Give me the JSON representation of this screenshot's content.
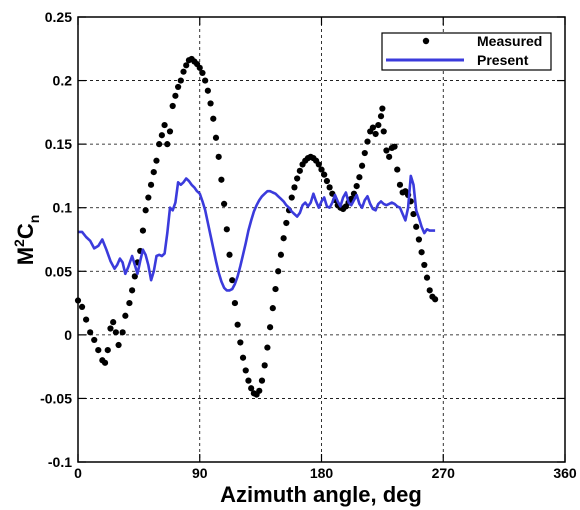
{
  "chart_data": {
    "type": "line",
    "xlabel": "Azimuth angle, deg",
    "ylabel_base": "M",
    "ylabel_sup": "2",
    "ylabel_mid": "C",
    "ylabel_sub": "n",
    "xlim": [
      0,
      360
    ],
    "ylim": [
      -0.1,
      0.25
    ],
    "xticks": [
      0,
      90,
      180,
      270,
      360
    ],
    "yticks": [
      -0.1,
      -0.05,
      0,
      0.05,
      0.1,
      0.15,
      0.2,
      0.25
    ],
    "xtick_labels": [
      "0",
      "90",
      "180",
      "270",
      "360"
    ],
    "ytick_labels": [
      "-0.1",
      "-0.05",
      "0",
      "0.05",
      "0.1",
      "0.15",
      "0.2",
      "0.25"
    ],
    "grid": true,
    "legend_position": "top-right",
    "series": [
      {
        "name": "Measured",
        "style": "markers",
        "color": "#000000",
        "points": [
          [
            0,
            0.027
          ],
          [
            3,
            0.022
          ],
          [
            6,
            0.012
          ],
          [
            9,
            0.002
          ],
          [
            12,
            -0.004
          ],
          [
            15,
            -0.012
          ],
          [
            18,
            -0.02
          ],
          [
            20,
            -0.022
          ],
          [
            22,
            -0.012
          ],
          [
            24,
            0.005
          ],
          [
            26,
            0.01
          ],
          [
            28,
            0.002
          ],
          [
            30,
            -0.008
          ],
          [
            33,
            0.002
          ],
          [
            35,
            0.015
          ],
          [
            38,
            0.025
          ],
          [
            40,
            0.035
          ],
          [
            42,
            0.046
          ],
          [
            44,
            0.057
          ],
          [
            46,
            0.066
          ],
          [
            48,
            0.082
          ],
          [
            50,
            0.098
          ],
          [
            52,
            0.108
          ],
          [
            54,
            0.118
          ],
          [
            56,
            0.128
          ],
          [
            58,
            0.137
          ],
          [
            60,
            0.15
          ],
          [
            62,
            0.157
          ],
          [
            64,
            0.165
          ],
          [
            66,
            0.15
          ],
          [
            68,
            0.16
          ],
          [
            70,
            0.18
          ],
          [
            72,
            0.188
          ],
          [
            74,
            0.195
          ],
          [
            76,
            0.2
          ],
          [
            78,
            0.207
          ],
          [
            80,
            0.212
          ],
          [
            82,
            0.216
          ],
          [
            84,
            0.217
          ],
          [
            86,
            0.215
          ],
          [
            88,
            0.213
          ],
          [
            90,
            0.21
          ],
          [
            92,
            0.206
          ],
          [
            94,
            0.2
          ],
          [
            96,
            0.192
          ],
          [
            98,
            0.182
          ],
          [
            100,
            0.17
          ],
          [
            102,
            0.155
          ],
          [
            104,
            0.14
          ],
          [
            106,
            0.122
          ],
          [
            108,
            0.103
          ],
          [
            110,
            0.083
          ],
          [
            112,
            0.063
          ],
          [
            114,
            0.043
          ],
          [
            116,
            0.025
          ],
          [
            118,
            0.008
          ],
          [
            120,
            -0.006
          ],
          [
            122,
            -0.018
          ],
          [
            124,
            -0.028
          ],
          [
            126,
            -0.036
          ],
          [
            128,
            -0.042
          ],
          [
            130,
            -0.046
          ],
          [
            132,
            -0.047
          ],
          [
            134,
            -0.044
          ],
          [
            136,
            -0.036
          ],
          [
            138,
            -0.024
          ],
          [
            140,
            -0.01
          ],
          [
            142,
            0.006
          ],
          [
            144,
            0.021
          ],
          [
            146,
            0.036
          ],
          [
            148,
            0.05
          ],
          [
            150,
            0.063
          ],
          [
            152,
            0.076
          ],
          [
            154,
            0.088
          ],
          [
            156,
            0.098
          ],
          [
            158,
            0.108
          ],
          [
            160,
            0.116
          ],
          [
            162,
            0.123
          ],
          [
            164,
            0.129
          ],
          [
            166,
            0.134
          ],
          [
            168,
            0.137
          ],
          [
            170,
            0.139
          ],
          [
            172,
            0.14
          ],
          [
            174,
            0.139
          ],
          [
            176,
            0.137
          ],
          [
            178,
            0.134
          ],
          [
            180,
            0.13
          ],
          [
            182,
            0.126
          ],
          [
            184,
            0.121
          ],
          [
            186,
            0.116
          ],
          [
            188,
            0.111
          ],
          [
            190,
            0.106
          ],
          [
            192,
            0.102
          ],
          [
            194,
            0.1
          ],
          [
            196,
            0.099
          ],
          [
            198,
            0.101
          ],
          [
            200,
            0.104
          ],
          [
            202,
            0.107
          ],
          [
            204,
            0.111
          ],
          [
            206,
            0.117
          ],
          [
            208,
            0.124
          ],
          [
            210,
            0.133
          ],
          [
            212,
            0.143
          ],
          [
            214,
            0.152
          ],
          [
            216,
            0.16
          ],
          [
            218,
            0.163
          ],
          [
            220,
            0.158
          ],
          [
            222,
            0.165
          ],
          [
            224,
            0.172
          ],
          [
            225,
            0.178
          ],
          [
            226,
            0.16
          ],
          [
            228,
            0.145
          ],
          [
            230,
            0.14
          ],
          [
            232,
            0.147
          ],
          [
            234,
            0.148
          ],
          [
            236,
            0.13
          ],
          [
            238,
            0.118
          ],
          [
            240,
            0.112
          ],
          [
            242,
            0.113
          ],
          [
            244,
            0.11
          ],
          [
            246,
            0.105
          ],
          [
            248,
            0.095
          ],
          [
            250,
            0.085
          ],
          [
            252,
            0.075
          ],
          [
            254,
            0.065
          ],
          [
            256,
            0.055
          ],
          [
            258,
            0.045
          ],
          [
            260,
            0.035
          ],
          [
            262,
            0.03
          ],
          [
            264,
            0.028
          ]
        ]
      },
      {
        "name": "Present",
        "style": "line",
        "color": "#3b3bdc",
        "points": [
          [
            0,
            0.081
          ],
          [
            3,
            0.081
          ],
          [
            6,
            0.077
          ],
          [
            9,
            0.074
          ],
          [
            12,
            0.068
          ],
          [
            15,
            0.07
          ],
          [
            18,
            0.075
          ],
          [
            21,
            0.067
          ],
          [
            24,
            0.058
          ],
          [
            27,
            0.052
          ],
          [
            29,
            0.055
          ],
          [
            31,
            0.06
          ],
          [
            33,
            0.057
          ],
          [
            35,
            0.048
          ],
          [
            37,
            0.053
          ],
          [
            40,
            0.062
          ],
          [
            42,
            0.055
          ],
          [
            44,
            0.048
          ],
          [
            46,
            0.058
          ],
          [
            48,
            0.067
          ],
          [
            50,
            0.063
          ],
          [
            52,
            0.055
          ],
          [
            54,
            0.043
          ],
          [
            56,
            0.05
          ],
          [
            58,
            0.062
          ],
          [
            60,
            0.063
          ],
          [
            62,
            0.062
          ],
          [
            64,
            0.064
          ],
          [
            66,
            0.08
          ],
          [
            68,
            0.1
          ],
          [
            70,
            0.098
          ],
          [
            72,
            0.104
          ],
          [
            74,
            0.12
          ],
          [
            76,
            0.118
          ],
          [
            78,
            0.12
          ],
          [
            80,
            0.123
          ],
          [
            82,
            0.121
          ],
          [
            84,
            0.118
          ],
          [
            86,
            0.116
          ],
          [
            88,
            0.113
          ],
          [
            90,
            0.111
          ],
          [
            92,
            0.105
          ],
          [
            94,
            0.098
          ],
          [
            96,
            0.088
          ],
          [
            98,
            0.078
          ],
          [
            100,
            0.068
          ],
          [
            102,
            0.058
          ],
          [
            104,
            0.049
          ],
          [
            106,
            0.042
          ],
          [
            108,
            0.037
          ],
          [
            110,
            0.035
          ],
          [
            112,
            0.035
          ],
          [
            114,
            0.036
          ],
          [
            116,
            0.04
          ],
          [
            118,
            0.046
          ],
          [
            120,
            0.054
          ],
          [
            122,
            0.063
          ],
          [
            124,
            0.072
          ],
          [
            126,
            0.082
          ],
          [
            128,
            0.09
          ],
          [
            130,
            0.097
          ],
          [
            132,
            0.102
          ],
          [
            134,
            0.106
          ],
          [
            136,
            0.109
          ],
          [
            138,
            0.111
          ],
          [
            140,
            0.113
          ],
          [
            142,
            0.113
          ],
          [
            144,
            0.112
          ],
          [
            146,
            0.111
          ],
          [
            148,
            0.109
          ],
          [
            150,
            0.107
          ],
          [
            152,
            0.105
          ],
          [
            154,
            0.102
          ],
          [
            156,
            0.1
          ],
          [
            158,
            0.097
          ],
          [
            160,
            0.095
          ],
          [
            162,
            0.093
          ],
          [
            164,
            0.096
          ],
          [
            166,
            0.102
          ],
          [
            168,
            0.104
          ],
          [
            170,
            0.101
          ],
          [
            172,
            0.104
          ],
          [
            174,
            0.111
          ],
          [
            176,
            0.105
          ],
          [
            178,
            0.1
          ],
          [
            180,
            0.105
          ],
          [
            182,
            0.108
          ],
          [
            184,
            0.101
          ],
          [
            186,
            0.1
          ],
          [
            188,
            0.104
          ],
          [
            190,
            0.11
          ],
          [
            192,
            0.105
          ],
          [
            194,
            0.101
          ],
          [
            196,
            0.108
          ],
          [
            198,
            0.112
          ],
          [
            200,
            0.104
          ],
          [
            202,
            0.102
          ],
          [
            204,
            0.106
          ],
          [
            206,
            0.11
          ],
          [
            208,
            0.103
          ],
          [
            210,
            0.1
          ],
          [
            212,
            0.106
          ],
          [
            214,
            0.109
          ],
          [
            216,
            0.103
          ],
          [
            218,
            0.099
          ],
          [
            220,
            0.098
          ],
          [
            222,
            0.103
          ],
          [
            224,
            0.105
          ],
          [
            226,
            0.103
          ],
          [
            228,
            0.102
          ],
          [
            230,
            0.103
          ],
          [
            232,
            0.104
          ],
          [
            234,
            0.103
          ],
          [
            236,
            0.101
          ],
          [
            238,
            0.1
          ],
          [
            240,
            0.095
          ],
          [
            242,
            0.09
          ],
          [
            244,
            0.1
          ],
          [
            246,
            0.125
          ],
          [
            248,
            0.118
          ],
          [
            250,
            0.098
          ],
          [
            252,
            0.092
          ],
          [
            254,
            0.085
          ],
          [
            256,
            0.08
          ],
          [
            258,
            0.083
          ],
          [
            260,
            0.082
          ],
          [
            262,
            0.082
          ],
          [
            264,
            0.082
          ]
        ]
      }
    ]
  }
}
